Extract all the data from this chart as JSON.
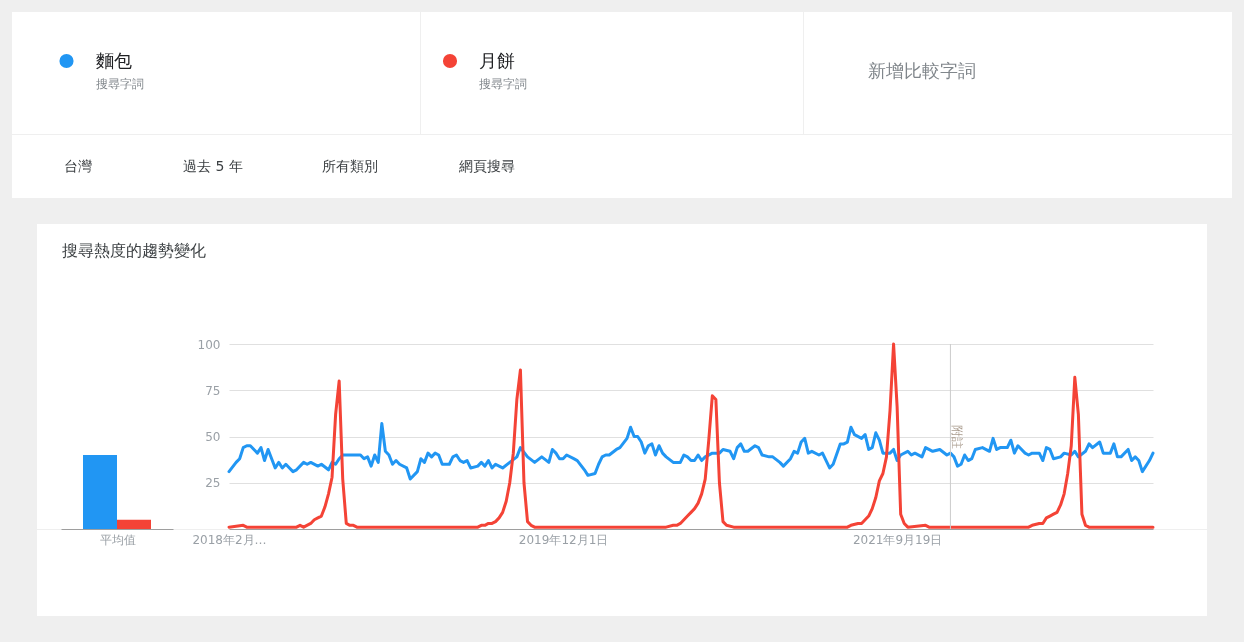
{
  "chart_data": [
    {
      "type": "bar",
      "title": "搜尋熱度的趨勢變化",
      "categories": [
        "平均值"
      ],
      "series": [
        {
          "color": "#2196f3",
          "values": [
            40
          ]
        },
        {
          "color": "#f44336",
          "values": [
            5
          ]
        }
      ],
      "ylim": [
        0,
        100
      ],
      "tick_labels": "x"
    },
    {
      "type": "line",
      "annotations": [
        "搜尋字詞",
        "搜尋字詞",
        "新增比較字詞",
        "台灣",
        "過去 5 年",
        "所有類別",
        "網頁搜尋"
      ],
      "series": [
        {
          "name": "麵包",
          "color": "#2196f3",
          "x": [
            "2018-02-11",
            "2018-02-25",
            "2018-03-04",
            "2018-03-11",
            "2018-03-18",
            "2018-03-25",
            "2018-04-08",
            "2018-04-15",
            "2018-04-22",
            "2018-04-29",
            "2018-05-13",
            "2018-05-20",
            "2018-05-27",
            "2018-06-03",
            "2018-06-10",
            "2018-06-17",
            "2018-06-24",
            "2018-07-08",
            "2018-07-15",
            "2018-07-22",
            "2018-08-05",
            "2018-08-12",
            "2018-08-26",
            "2018-09-02",
            "2018-09-09",
            "2018-09-16",
            "2018-09-23",
            "2018-10-28",
            "2018-11-04",
            "2018-11-11",
            "2018-11-18",
            "2018-11-25",
            "2018-12-02",
            "2018-12-09",
            "2018-12-16",
            "2018-12-23",
            "2018-12-30",
            "2019-01-06",
            "2019-01-13",
            "2019-01-27",
            "2019-02-03",
            "2019-02-17",
            "2019-02-24",
            "2019-03-03",
            "2019-03-10",
            "2019-03-17",
            "2019-03-24",
            "2019-03-31",
            "2019-04-07",
            "2019-04-21",
            "2019-04-28",
            "2019-05-05",
            "2019-05-12",
            "2019-05-19",
            "2019-05-26",
            "2019-06-02",
            "2019-06-16",
            "2019-06-23",
            "2019-06-30",
            "2019-07-07",
            "2019-07-14",
            "2019-07-21",
            "2019-07-28",
            "2019-08-04",
            "2019-08-18",
            "2019-09-01",
            "2019-09-08",
            "2019-09-22",
            "2019-10-06",
            "2019-10-20",
            "2019-11-03",
            "2019-11-10",
            "2019-11-17",
            "2019-11-24",
            "2019-12-01",
            "2019-12-08",
            "2019-12-22",
            "2019-12-29",
            "2020-01-12",
            "2020-01-19",
            "2020-02-02",
            "2020-02-09",
            "2020-02-16",
            "2020-02-23",
            "2020-03-01",
            "2020-03-15",
            "2020-03-22",
            "2020-04-05",
            "2020-04-12",
            "2020-04-19",
            "2020-04-26",
            "2020-05-03",
            "2020-05-10",
            "2020-05-17",
            "2020-05-24",
            "2020-05-31",
            "2020-06-07",
            "2020-06-14",
            "2020-06-21",
            "2020-07-05",
            "2020-07-19",
            "2020-07-26",
            "2020-08-02",
            "2020-08-09",
            "2020-08-16",
            "2020-08-23",
            "2020-08-30",
            "2020-09-06",
            "2020-09-20",
            "2020-10-04",
            "2020-10-11",
            "2020-10-25",
            "2020-11-01",
            "2020-11-08",
            "2020-11-15",
            "2020-11-22",
            "2020-11-29",
            "2020-12-13",
            "2020-12-20",
            "2020-12-27",
            "2021-01-10",
            "2021-01-17",
            "2021-01-31",
            "2021-02-07",
            "2021-02-21",
            "2021-02-28",
            "2021-03-07",
            "2021-03-14",
            "2021-03-21",
            "2021-03-28",
            "2021-04-04",
            "2021-04-18",
            "2021-04-25",
            "2021-05-09",
            "2021-05-16",
            "2021-05-30",
            "2021-06-06",
            "2021-06-13",
            "2021-06-20",
            "2021-06-27",
            "2021-07-11",
            "2021-07-18",
            "2021-07-25",
            "2021-08-01",
            "2021-08-08",
            "2021-08-15",
            "2021-08-22",
            "2021-09-05",
            "2021-09-12",
            "2021-09-19",
            "2021-09-26",
            "2021-10-10",
            "2021-10-17",
            "2021-10-24",
            "2021-11-07",
            "2021-11-14",
            "2021-11-28",
            "2021-12-12",
            "2021-12-26",
            "2022-01-02",
            "2022-01-09",
            "2022-01-16",
            "2022-01-23",
            "2022-01-30",
            "2022-02-06",
            "2022-02-13",
            "2022-02-20",
            "2022-03-06",
            "2022-03-20",
            "2022-03-27",
            "2022-04-03",
            "2022-04-10",
            "2022-04-24",
            "2022-05-01",
            "2022-05-08",
            "2022-05-15",
            "2022-05-29",
            "2022-06-05",
            "2022-06-12",
            "2022-06-26",
            "2022-07-03",
            "2022-07-10",
            "2022-07-17",
            "2022-07-24",
            "2022-08-07",
            "2022-08-14",
            "2022-08-28",
            "2022-09-04",
            "2022-09-11",
            "2022-09-25",
            "2022-10-02",
            "2022-10-09",
            "2022-10-23",
            "2022-10-30",
            "2022-11-13",
            "2022-11-20",
            "2022-11-27",
            "2022-12-04",
            "2022-12-18",
            "2022-12-25",
            "2023-01-01",
            "2023-01-08",
            "2023-01-15",
            "2023-01-29",
            "2023-02-05"
          ],
          "values": [
            31,
            36,
            38,
            44,
            45,
            45,
            41,
            44,
            37,
            43,
            33,
            36,
            33,
            35,
            33,
            31,
            32,
            36,
            35,
            36,
            34,
            35,
            32,
            36,
            35,
            38,
            40,
            40,
            38,
            39,
            34,
            40,
            36,
            57,
            42,
            40,
            35,
            37,
            35,
            33,
            27,
            31,
            38,
            36,
            41,
            39,
            41,
            40,
            35,
            35,
            39,
            40,
            37,
            36,
            37,
            33,
            34,
            36,
            34,
            37,
            33,
            35,
            34,
            33,
            36,
            39,
            44,
            39,
            36,
            39,
            36,
            43,
            41,
            38,
            38,
            40,
            38,
            37,
            32,
            29,
            30,
            35,
            39,
            40,
            40,
            43,
            44,
            49,
            55,
            50,
            50,
            47,
            41,
            45,
            46,
            40,
            45,
            41,
            39,
            36,
            36,
            40,
            39,
            37,
            37,
            40,
            37,
            39,
            41,
            41,
            43,
            42,
            38,
            44,
            46,
            42,
            42,
            45,
            44,
            40,
            39,
            39,
            36,
            34,
            38,
            42,
            41,
            47,
            49,
            41,
            42,
            40,
            41,
            33,
            35,
            46,
            46,
            47,
            55,
            51,
            49,
            51,
            43,
            44,
            52,
            48,
            41,
            41,
            43,
            37,
            40,
            42,
            40,
            41,
            39,
            44,
            42,
            43,
            40,
            41,
            39,
            34,
            35,
            40,
            37,
            38,
            43,
            44,
            42,
            49,
            43,
            44,
            44,
            48,
            41,
            45,
            41,
            40,
            41,
            41,
            37,
            44,
            43,
            38,
            39,
            41,
            40,
            42,
            39,
            42,
            46,
            44,
            47,
            41,
            41,
            46,
            39,
            39,
            43,
            37,
            39,
            37,
            31,
            37,
            41
          ]
        },
        {
          "name": "月餅",
          "color": "#f44336",
          "x": [
            "2018-02-11",
            "2018-03-11",
            "2018-03-18",
            "2018-06-24",
            "2018-07-01",
            "2018-07-08",
            "2018-07-22",
            "2018-07-29",
            "2018-08-05",
            "2018-08-12",
            "2018-08-19",
            "2018-08-26",
            "2018-09-02",
            "2018-09-09",
            "2018-09-16",
            "2018-09-23",
            "2018-09-30",
            "2018-10-07",
            "2018-10-14",
            "2018-10-21",
            "2019-06-16",
            "2019-06-23",
            "2019-06-30",
            "2019-07-07",
            "2019-07-14",
            "2019-07-21",
            "2019-07-28",
            "2019-08-04",
            "2019-08-11",
            "2019-08-18",
            "2019-08-25",
            "2019-09-01",
            "2019-09-08",
            "2019-09-15",
            "2019-09-22",
            "2019-09-29",
            "2019-10-06",
            "2020-06-21",
            "2020-07-05",
            "2020-07-12",
            "2020-07-19",
            "2020-07-26",
            "2020-08-02",
            "2020-08-09",
            "2020-08-16",
            "2020-08-23",
            "2020-08-30",
            "2020-09-06",
            "2020-09-13",
            "2020-09-20",
            "2020-09-27",
            "2020-10-04",
            "2020-10-11",
            "2020-10-18",
            "2020-11-01",
            "2021-06-13",
            "2021-06-20",
            "2021-07-04",
            "2021-07-11",
            "2021-07-18",
            "2021-07-25",
            "2021-08-01",
            "2021-08-08",
            "2021-08-15",
            "2021-08-22",
            "2021-08-29",
            "2021-09-05",
            "2021-09-12",
            "2021-09-19",
            "2021-09-26",
            "2021-10-03",
            "2021-10-10",
            "2021-11-14",
            "2021-11-21",
            "2022-06-05",
            "2022-06-12",
            "2022-06-26",
            "2022-07-03",
            "2022-07-10",
            "2022-07-17",
            "2022-07-24",
            "2022-07-31",
            "2022-08-07",
            "2022-08-14",
            "2022-08-21",
            "2022-08-28",
            "2022-09-04",
            "2022-09-11",
            "2022-09-18",
            "2022-09-25",
            "2022-10-02",
            "2023-02-05"
          ],
          "values": [
            1,
            2,
            1,
            1,
            2,
            1,
            3,
            5,
            6,
            7,
            12,
            19,
            28,
            62,
            80,
            27,
            3,
            2,
            2,
            1,
            1,
            2,
            2,
            3,
            3,
            4,
            6,
            9,
            15,
            25,
            41,
            70,
            86,
            25,
            4,
            2,
            1,
            1,
            2,
            2,
            3,
            5,
            7,
            9,
            11,
            14,
            19,
            27,
            48,
            72,
            70,
            25,
            4,
            2,
            1,
            1,
            2,
            3,
            3,
            5,
            7,
            11,
            17,
            26,
            30,
            39,
            64,
            100,
            66,
            8,
            3,
            1,
            2,
            1,
            1,
            2,
            3,
            3,
            6,
            7,
            8,
            9,
            13,
            19,
            30,
            45,
            82,
            62,
            8,
            2,
            1,
            1
          ]
        }
      ],
      "xlim": [
        "2018-02-11",
        "2023-02-05"
      ],
      "xticks": [
        {
          "value": "2018-02-11",
          "label": "2018年2月…"
        },
        {
          "value": "2019-12-01",
          "label": "2019年12月1日"
        },
        {
          "value": "2021-09-19",
          "label": "2021年9月19日"
        }
      ],
      "ylim": [
        0,
        100
      ],
      "yticks": [
        25,
        50,
        75,
        100
      ],
      "grid": "y",
      "legend": "top",
      "ref_lines": [
        {
          "axis": "x",
          "value": "2022-01-02",
          "label": "附註",
          "color": "#cccccc"
        }
      ]
    }
  ]
}
